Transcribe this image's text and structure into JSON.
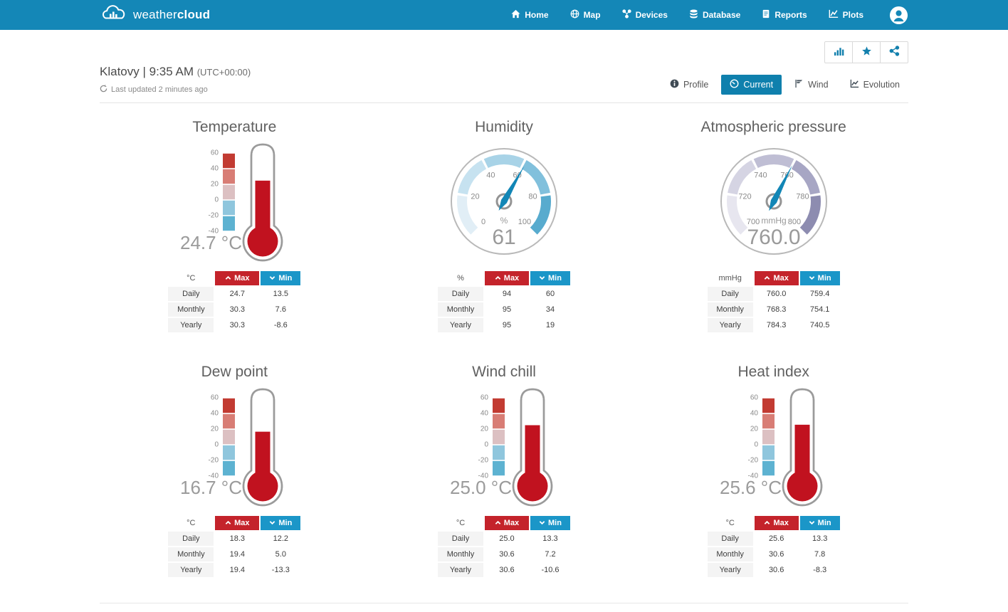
{
  "navbar": {
    "brand_light": "weather",
    "brand_bold": "cloud",
    "items": [
      {
        "label": "Home",
        "icon": "home-icon"
      },
      {
        "label": "Map",
        "icon": "globe-icon"
      },
      {
        "label": "Devices",
        "icon": "devices-icon"
      },
      {
        "label": "Database",
        "icon": "database-icon"
      },
      {
        "label": "Reports",
        "icon": "reports-icon"
      },
      {
        "label": "Plots",
        "icon": "plots-icon"
      }
    ]
  },
  "header": {
    "title": "Klatovy | 9:35 AM",
    "utc": "(UTC+00:00)",
    "last_updated": "Last updated 2 minutes ago"
  },
  "actions": [
    {
      "icon": "bar-chart-icon"
    },
    {
      "icon": "star-icon"
    },
    {
      "icon": "share-icon"
    }
  ],
  "tabs": [
    {
      "label": "Profile",
      "icon": "info-icon",
      "active": false
    },
    {
      "label": "Current",
      "icon": "gauge-icon",
      "active": true
    },
    {
      "label": "Wind",
      "icon": "wind-flag-icon",
      "active": false
    },
    {
      "label": "Evolution",
      "icon": "line-chart-icon",
      "active": false
    }
  ],
  "colors": {
    "navbar": "#1487b7",
    "active_tab": "#0f80ad",
    "accent_blue": "#1380ad",
    "max_red": "#c4232b",
    "min_blue": "#1b96c8",
    "thermo_fill": "#c1121f",
    "needle": "#1286b6"
  },
  "panels": [
    {
      "title": "Temperature",
      "type": "thermometer",
      "unit": "°C",
      "value": 24.7,
      "value_label": "24.7 °C",
      "scale": {
        "min": -40,
        "max": 60,
        "tick_labels": [
          "60",
          "40",
          "20",
          "0",
          "-20",
          "-40"
        ],
        "segment_colors": [
          "#c23b32",
          "#d87d75",
          "#dcc0c2",
          "#8fc6dd",
          "#5db2d1"
        ]
      },
      "table": {
        "unit": "°C",
        "max_label": "Max",
        "min_label": "Min",
        "rows": [
          {
            "label": "Daily",
            "max": "24.7",
            "min": "13.5"
          },
          {
            "label": "Monthly",
            "max": "30.3",
            "min": "7.6"
          },
          {
            "label": "Yearly",
            "max": "30.3",
            "min": "-8.6"
          }
        ]
      }
    },
    {
      "title": "Humidity",
      "type": "dial",
      "unit": "%",
      "value": 61,
      "value_label": "61",
      "scale": {
        "min": 0,
        "max": 100,
        "tick_labels": [
          "0",
          "20",
          "40",
          "60",
          "80",
          "100"
        ],
        "segment_colors": [
          "#e1eef6",
          "#c6e2f0",
          "#a8d3e7",
          "#81c0dc",
          "#58abce"
        ]
      },
      "table": {
        "unit": "%",
        "max_label": "Max",
        "min_label": "Min",
        "rows": [
          {
            "label": "Daily",
            "max": "94",
            "min": "60"
          },
          {
            "label": "Monthly",
            "max": "95",
            "min": "34"
          },
          {
            "label": "Yearly",
            "max": "95",
            "min": "19"
          }
        ]
      }
    },
    {
      "title": "Atmospheric pressure",
      "type": "dial",
      "unit": "mmHg",
      "value": 760.0,
      "value_label": "760.0",
      "scale": {
        "min": 700,
        "max": 800,
        "tick_labels": [
          "700",
          "720",
          "740",
          "760",
          "780",
          "800"
        ],
        "segment_colors": [
          "#e7e6ef",
          "#d5d4e3",
          "#bfbed4",
          "#a7a6c4",
          "#8d8cb0"
        ]
      },
      "table": {
        "unit": "mmHg",
        "max_label": "Max",
        "min_label": "Min",
        "rows": [
          {
            "label": "Daily",
            "max": "760.0",
            "min": "759.4"
          },
          {
            "label": "Monthly",
            "max": "768.3",
            "min": "754.1"
          },
          {
            "label": "Yearly",
            "max": "784.3",
            "min": "740.5"
          }
        ]
      }
    },
    {
      "title": "Dew point",
      "type": "thermometer",
      "unit": "°C",
      "value": 16.7,
      "value_label": "16.7 °C",
      "scale": {
        "min": -40,
        "max": 60,
        "tick_labels": [
          "60",
          "40",
          "20",
          "0",
          "-20",
          "-40"
        ],
        "segment_colors": [
          "#c23b32",
          "#d87d75",
          "#dcc0c2",
          "#8fc6dd",
          "#5db2d1"
        ]
      },
      "table": {
        "unit": "°C",
        "max_label": "Max",
        "min_label": "Min",
        "rows": [
          {
            "label": "Daily",
            "max": "18.3",
            "min": "12.2"
          },
          {
            "label": "Monthly",
            "max": "19.4",
            "min": "5.0"
          },
          {
            "label": "Yearly",
            "max": "19.4",
            "min": "-13.3"
          }
        ]
      }
    },
    {
      "title": "Wind chill",
      "type": "thermometer",
      "unit": "°C",
      "value": 25.0,
      "value_label": "25.0 °C",
      "scale": {
        "min": -40,
        "max": 60,
        "tick_labels": [
          "60",
          "40",
          "20",
          "0",
          "-20",
          "-40"
        ],
        "segment_colors": [
          "#c23b32",
          "#d87d75",
          "#dcc0c2",
          "#8fc6dd",
          "#5db2d1"
        ]
      },
      "table": {
        "unit": "°C",
        "max_label": "Max",
        "min_label": "Min",
        "rows": [
          {
            "label": "Daily",
            "max": "25.0",
            "min": "13.3"
          },
          {
            "label": "Monthly",
            "max": "30.6",
            "min": "7.2"
          },
          {
            "label": "Yearly",
            "max": "30.6",
            "min": "-10.6"
          }
        ]
      }
    },
    {
      "title": "Heat index",
      "type": "thermometer",
      "unit": "°C",
      "value": 25.6,
      "value_label": "25.6 °C",
      "scale": {
        "min": -40,
        "max": 60,
        "tick_labels": [
          "60",
          "40",
          "20",
          "0",
          "-20",
          "-40"
        ],
        "segment_colors": [
          "#c23b32",
          "#d87d75",
          "#dcc0c2",
          "#8fc6dd",
          "#5db2d1"
        ]
      },
      "table": {
        "unit": "°C",
        "max_label": "Max",
        "min_label": "Min",
        "rows": [
          {
            "label": "Daily",
            "max": "25.6",
            "min": "13.3"
          },
          {
            "label": "Monthly",
            "max": "30.6",
            "min": "7.8"
          },
          {
            "label": "Yearly",
            "max": "30.6",
            "min": "-8.3"
          }
        ]
      }
    }
  ]
}
